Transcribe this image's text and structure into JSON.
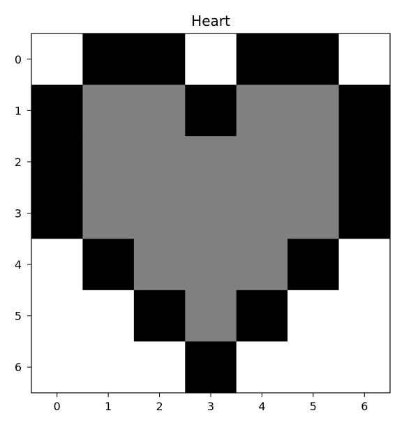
{
  "chart_data": {
    "type": "heatmap",
    "title": "Heart",
    "xlabel": "",
    "ylabel": "",
    "x_ticks": [
      "0",
      "1",
      "2",
      "3",
      "4",
      "5",
      "6"
    ],
    "y_ticks": [
      "0",
      "1",
      "2",
      "3",
      "4",
      "5",
      "6"
    ],
    "colormap": [
      "#ffffff",
      "#808080",
      "#000000"
    ],
    "value_range": [
      0,
      2
    ],
    "grid": false,
    "values": [
      [
        0,
        2,
        2,
        0,
        2,
        2,
        0
      ],
      [
        2,
        1,
        1,
        2,
        1,
        1,
        2
      ],
      [
        2,
        1,
        1,
        1,
        1,
        1,
        2
      ],
      [
        2,
        1,
        1,
        1,
        1,
        1,
        2
      ],
      [
        0,
        2,
        1,
        1,
        1,
        2,
        0
      ],
      [
        0,
        0,
        2,
        1,
        2,
        0,
        0
      ],
      [
        0,
        0,
        0,
        2,
        0,
        0,
        0
      ]
    ]
  }
}
